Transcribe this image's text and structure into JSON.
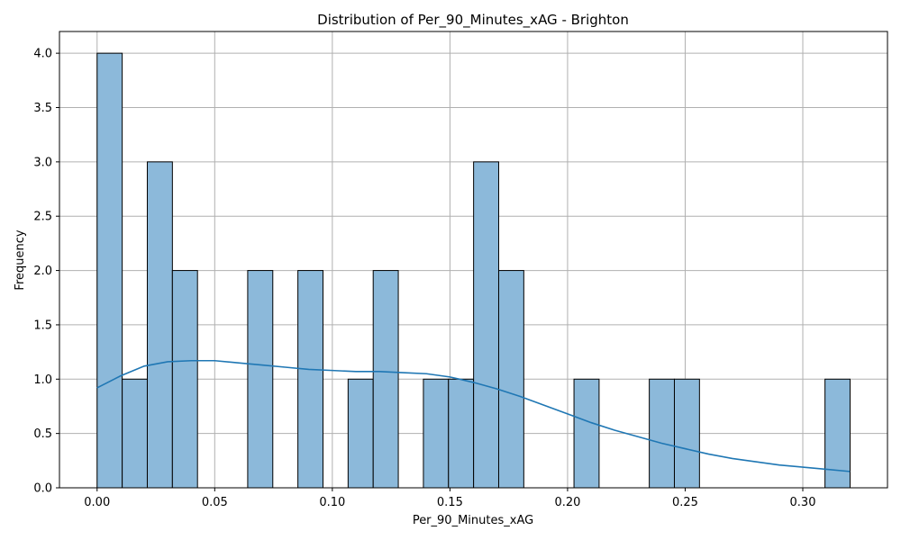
{
  "chart_data": {
    "type": "bar",
    "title": "Distribution of Per_90_Minutes_xAG - Brighton",
    "xlabel": "Per_90_Minutes_xAG",
    "ylabel": "Frequency",
    "xlim": [
      -0.016,
      0.336
    ],
    "ylim": [
      0,
      4.2
    ],
    "x_ticks": [
      0.0,
      0.05,
      0.1,
      0.15,
      0.2,
      0.25,
      0.3
    ],
    "x_tick_labels": [
      "0.00",
      "0.05",
      "0.10",
      "0.15",
      "0.20",
      "0.25",
      "0.30"
    ],
    "y_ticks": [
      0.0,
      0.5,
      1.0,
      1.5,
      2.0,
      2.5,
      3.0,
      3.5,
      4.0
    ],
    "y_tick_labels": [
      "0.0",
      "0.5",
      "1.0",
      "1.5",
      "2.0",
      "2.5",
      "3.0",
      "3.5",
      "4.0"
    ],
    "bin_start": 0.0,
    "bin_width": 0.01067,
    "counts": [
      4,
      1,
      3,
      2,
      0,
      0,
      2,
      0,
      2,
      0,
      1,
      2,
      0,
      1,
      1,
      3,
      2,
      0,
      0,
      1,
      0,
      0,
      1,
      1,
      0,
      0,
      0,
      0,
      0,
      1
    ],
    "kde": {
      "x": [
        0.0,
        0.01,
        0.02,
        0.03,
        0.04,
        0.05,
        0.06,
        0.07,
        0.08,
        0.09,
        0.1,
        0.11,
        0.12,
        0.13,
        0.14,
        0.15,
        0.16,
        0.17,
        0.18,
        0.19,
        0.2,
        0.21,
        0.22,
        0.23,
        0.24,
        0.25,
        0.26,
        0.27,
        0.28,
        0.29,
        0.3,
        0.31,
        0.32
      ],
      "y": [
        0.92,
        1.03,
        1.12,
        1.16,
        1.17,
        1.17,
        1.15,
        1.13,
        1.11,
        1.09,
        1.08,
        1.07,
        1.07,
        1.06,
        1.05,
        1.02,
        0.97,
        0.91,
        0.84,
        0.76,
        0.68,
        0.6,
        0.53,
        0.47,
        0.41,
        0.36,
        0.31,
        0.27,
        0.24,
        0.21,
        0.19,
        0.17,
        0.15
      ]
    },
    "grid": true,
    "colors": {
      "bar_fill": "#8cb9da",
      "bar_edge": "#000000",
      "kde_line": "#1f77b4",
      "grid": "#b0b0b0"
    }
  }
}
